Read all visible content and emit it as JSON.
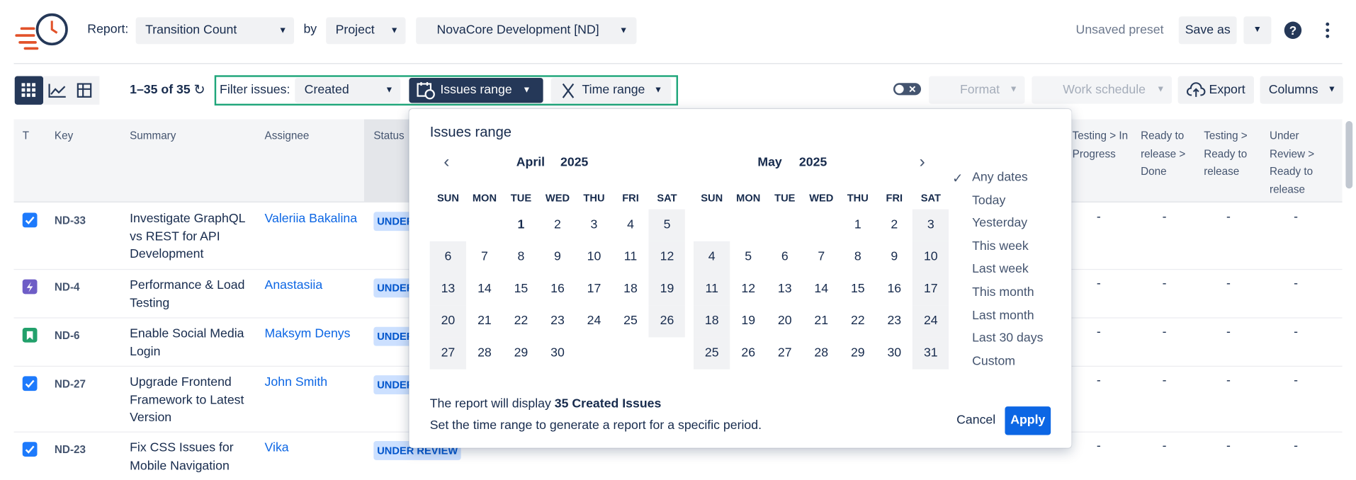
{
  "toolbar": {
    "report_label": "Report:",
    "report": "Transition Count",
    "by_label": "by",
    "group": "Project",
    "project": "NovaCore Development [ND]",
    "preset": "Unsaved preset",
    "save_as": "Save as"
  },
  "filter_bar": {
    "count": "1–35 of 35",
    "filter_label": "Filter issues:",
    "filter": "Created",
    "issues_range": "Issues range",
    "time_range": "Time range",
    "format": "Format",
    "work_schedule": "Work schedule",
    "export": "Export",
    "columns": "Columns"
  },
  "table": {
    "headers": [
      "T",
      "Key",
      "Summary",
      "Assignee",
      "Status",
      "Testing > In Progress",
      "Ready to release > Done",
      "Testing > Ready to release",
      "Under Review > Ready to release"
    ],
    "rows": [
      {
        "key": "ND-33",
        "summary": "Investigate GraphQL vs REST for API Development",
        "assignee": "Valeriia Bakalina",
        "status": "UNDER REVIEW",
        "cells": [
          "-",
          "-",
          "-",
          "-"
        ]
      },
      {
        "key": "ND-4",
        "summary": "Performance & Load Testing",
        "assignee": "Anastasiia",
        "status": "UNDER REVIEW",
        "cells": [
          "-",
          "-",
          "-",
          "-"
        ]
      },
      {
        "key": "ND-6",
        "summary": "Enable Social Media Login",
        "assignee": "Maksym Denys",
        "status": "UNDER REVIEW",
        "cells": [
          "-",
          "-",
          "-",
          "-"
        ]
      },
      {
        "key": "ND-27",
        "summary": "Upgrade Frontend Framework to Latest Version",
        "assignee": "John Smith",
        "status": "UNDER REVIEW",
        "cells": [
          "-",
          "-",
          "-",
          "-"
        ]
      },
      {
        "key": "ND-23",
        "summary": "Fix CSS Issues for Mobile Navigation",
        "assignee": "Vika",
        "status": "UNDER REVIEW",
        "cells": [
          "-",
          "-",
          "-",
          "-"
        ]
      }
    ]
  },
  "popup": {
    "title": "Issues range",
    "weekdays": [
      "SUN",
      "MON",
      "TUE",
      "WED",
      "THU",
      "FRI",
      "SAT"
    ],
    "calendars": [
      {
        "month": "April",
        "year": "2025",
        "weeks": [
          [
            null,
            null,
            1,
            2,
            3,
            4,
            5
          ],
          [
            6,
            7,
            8,
            9,
            10,
            11,
            12
          ],
          [
            13,
            14,
            15,
            16,
            17,
            18,
            19
          ],
          [
            20,
            21,
            22,
            23,
            24,
            25,
            26
          ],
          [
            27,
            28,
            29,
            30,
            null,
            null,
            null
          ]
        ]
      },
      {
        "month": "May",
        "year": "2025",
        "weeks": [
          [
            null,
            null,
            null,
            null,
            1,
            2,
            3
          ],
          [
            4,
            5,
            6,
            7,
            8,
            9,
            10
          ],
          [
            11,
            12,
            13,
            14,
            15,
            16,
            17
          ],
          [
            18,
            19,
            20,
            21,
            22,
            23,
            24
          ],
          [
            25,
            26,
            27,
            28,
            29,
            30,
            31
          ]
        ]
      }
    ],
    "presets": [
      "Any dates",
      "Today",
      "Yesterday",
      "This week",
      "Last week",
      "This month",
      "Last month",
      "Last 30 days",
      "Custom"
    ],
    "summary_prefix": "The report will display",
    "summary_bold": "35 Created Issues",
    "hint": "Set the time range to generate a report for a specific period.",
    "cancel": "Cancel",
    "apply": "Apply"
  }
}
